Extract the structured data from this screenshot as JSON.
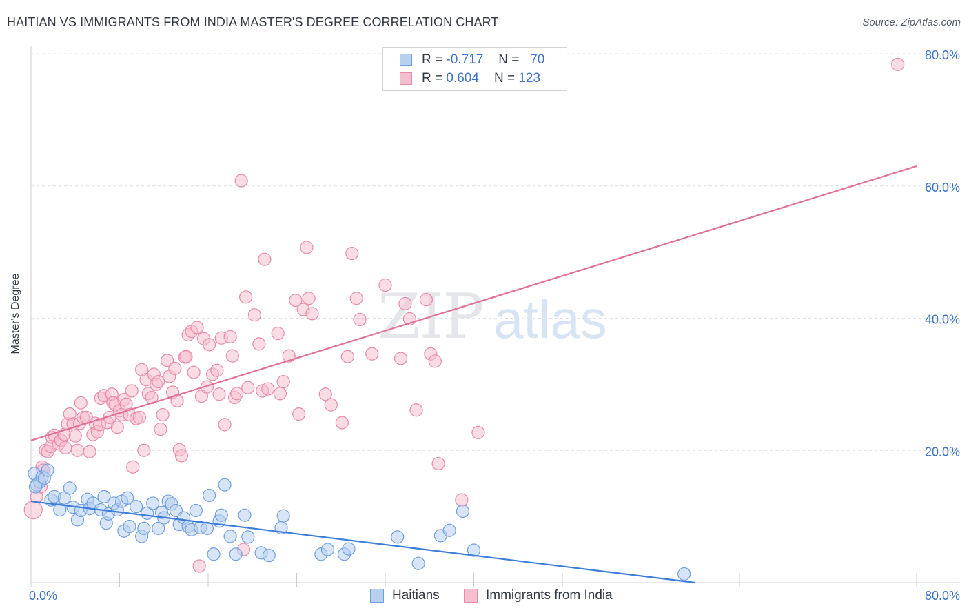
{
  "header": {
    "title": "HAITIAN VS IMMIGRANTS FROM INDIA MASTER'S DEGREE CORRELATION CHART",
    "source": "Source: ZipAtlas.com"
  },
  "legend_top": {
    "rows": [
      {
        "r_label": "R =",
        "r_value": "-0.717",
        "n_label": "N =",
        "n_value": "70"
      },
      {
        "r_label": "R =",
        "r_value": "0.604",
        "n_label": "N =",
        "n_value": "123"
      }
    ]
  },
  "legend_bottom": {
    "haitians": "Haitians",
    "india": "Immigrants from India"
  },
  "colors": {
    "blue": "#3b7dd8",
    "blue_fill": "#b8d0f0",
    "pink": "#e07097",
    "pink_fill": "#f6bfd0",
    "axis_label": "#3a72c8",
    "grid": "#dde1e6"
  },
  "chart_data": {
    "type": "scatter",
    "title": "HAITIAN VS IMMIGRANTS FROM INDIA MASTER'S DEGREE CORRELATION CHART",
    "xlabel": "",
    "ylabel": "Master's Degree",
    "xlim": [
      0,
      80
    ],
    "ylim": [
      0,
      80
    ],
    "x_tick_labels": [
      "0.0%",
      "80.0%"
    ],
    "y_tick_labels": [
      "20.0%",
      "40.0%",
      "60.0%",
      "80.0%"
    ],
    "y_ticks": [
      20,
      40,
      60,
      80
    ],
    "watermark": "ZIPatlas",
    "series": [
      {
        "name": "Haitians",
        "R": -0.717,
        "N": 70,
        "trend": {
          "x": [
            0,
            60
          ],
          "y": [
            12.3,
            0
          ]
        },
        "points": [
          [
            0.3,
            16.5
          ],
          [
            0.5,
            14.8
          ],
          [
            0.8,
            15.2
          ],
          [
            1,
            16
          ],
          [
            1.2,
            15.8
          ],
          [
            1.5,
            17
          ],
          [
            1.8,
            12.5
          ],
          [
            2.1,
            13
          ],
          [
            2.6,
            11
          ],
          [
            3,
            12.8
          ],
          [
            3.5,
            14.3
          ],
          [
            3.8,
            11.4
          ],
          [
            4.2,
            9.5
          ],
          [
            4.5,
            10.9
          ],
          [
            5.1,
            12.6
          ],
          [
            5.3,
            11.2
          ],
          [
            5.6,
            12
          ],
          [
            6.3,
            11
          ],
          [
            6.6,
            13
          ],
          [
            6.8,
            9
          ],
          [
            7,
            10.4
          ],
          [
            7.5,
            12
          ],
          [
            7.8,
            11
          ],
          [
            8.2,
            12.3
          ],
          [
            8.4,
            7.8
          ],
          [
            8.7,
            12.8
          ],
          [
            8.9,
            8.5
          ],
          [
            9.5,
            11.5
          ],
          [
            10,
            7
          ],
          [
            10.2,
            8.2
          ],
          [
            10.5,
            10.5
          ],
          [
            11,
            12
          ],
          [
            11.5,
            8.2
          ],
          [
            11.8,
            10.6
          ],
          [
            12,
            9.8
          ],
          [
            12.4,
            12.3
          ],
          [
            12.7,
            11.9
          ],
          [
            13.1,
            10.9
          ],
          [
            13.4,
            8.8
          ],
          [
            13.8,
            9.8
          ],
          [
            14.2,
            8.5
          ],
          [
            14.5,
            8.0
          ],
          [
            14.9,
            10.9
          ],
          [
            15.3,
            8.3
          ],
          [
            15.9,
            8.2
          ],
          [
            16.1,
            13.2
          ],
          [
            16.5,
            4.3
          ],
          [
            17,
            9.3
          ],
          [
            17.2,
            10.2
          ],
          [
            17.5,
            14.8
          ],
          [
            18,
            7
          ],
          [
            18.5,
            4.3
          ],
          [
            19.3,
            10.2
          ],
          [
            19.6,
            6.9
          ],
          [
            20.8,
            4.5
          ],
          [
            21.5,
            4.1
          ],
          [
            22.6,
            8.3
          ],
          [
            22.8,
            10.1
          ],
          [
            26.2,
            4.3
          ],
          [
            26.8,
            5
          ],
          [
            28.3,
            4.3
          ],
          [
            28.7,
            5.1
          ],
          [
            33.1,
            6.9
          ],
          [
            35,
            2.9
          ],
          [
            37,
            7.1
          ],
          [
            37.8,
            7.9
          ],
          [
            39,
            10.8
          ],
          [
            40,
            4.9
          ],
          [
            59,
            1.3
          ],
          [
            0.4,
            14.5
          ]
        ]
      },
      {
        "name": "Immigrants from India",
        "R": 0.604,
        "N": 123,
        "trend": {
          "x": [
            0,
            80
          ],
          "y": [
            21.5,
            63
          ]
        },
        "points": [
          [
            0.2,
            11
          ],
          [
            0.5,
            13
          ],
          [
            0.9,
            14.5
          ],
          [
            1,
            17.5
          ],
          [
            1.1,
            17
          ],
          [
            1.3,
            20
          ],
          [
            1.5,
            19.8
          ],
          [
            1.8,
            20.6
          ],
          [
            1.9,
            22
          ],
          [
            2.1,
            22.3
          ],
          [
            2.5,
            21
          ],
          [
            2.7,
            21.5
          ],
          [
            3,
            22.4
          ],
          [
            3.1,
            20.4
          ],
          [
            3.3,
            24
          ],
          [
            3.5,
            25.5
          ],
          [
            3.8,
            24
          ],
          [
            4,
            22.2
          ],
          [
            4.2,
            20
          ],
          [
            4.4,
            24.1
          ],
          [
            4.5,
            27.2
          ],
          [
            4.7,
            25
          ],
          [
            5,
            25
          ],
          [
            5.3,
            19.8
          ],
          [
            5.6,
            22.4
          ],
          [
            5.8,
            24.1
          ],
          [
            6,
            22.8
          ],
          [
            6.2,
            23.9
          ],
          [
            6.3,
            27.9
          ],
          [
            6.6,
            28.3
          ],
          [
            6.9,
            24.2
          ],
          [
            7.1,
            25
          ],
          [
            7.3,
            28.5
          ],
          [
            7.4,
            27.2
          ],
          [
            7.6,
            26.9
          ],
          [
            7.8,
            23.5
          ],
          [
            8.0,
            26
          ],
          [
            8.2,
            25.4
          ],
          [
            8.4,
            27.7
          ],
          [
            8.6,
            27
          ],
          [
            8.9,
            25.4
          ],
          [
            9.1,
            29
          ],
          [
            9.2,
            17.5
          ],
          [
            9.5,
            24.8
          ],
          [
            9.8,
            25
          ],
          [
            10,
            32.2
          ],
          [
            10.2,
            20
          ],
          [
            10.4,
            30.7
          ],
          [
            10.6,
            28.6
          ],
          [
            10.9,
            28
          ],
          [
            11.1,
            31.5
          ],
          [
            11.3,
            30
          ],
          [
            11.5,
            30.4
          ],
          [
            11.7,
            23.2
          ],
          [
            11.9,
            25.4
          ],
          [
            12.3,
            33.6
          ],
          [
            12.5,
            31.2
          ],
          [
            12.8,
            28.8
          ],
          [
            13,
            32.4
          ],
          [
            13.2,
            27.5
          ],
          [
            13.4,
            20.1
          ],
          [
            13.6,
            19.2
          ],
          [
            13.9,
            34.1
          ],
          [
            14,
            34.2
          ],
          [
            14.2,
            37.5
          ],
          [
            14.5,
            38
          ],
          [
            14.7,
            31.8
          ],
          [
            15,
            38.6
          ],
          [
            15.2,
            2.5
          ],
          [
            15.4,
            28.2
          ],
          [
            15.6,
            36.9
          ],
          [
            15.9,
            29.6
          ],
          [
            16.1,
            36
          ],
          [
            16.4,
            31.5
          ],
          [
            16.8,
            32.1
          ],
          [
            17,
            28.5
          ],
          [
            17.2,
            37
          ],
          [
            17.5,
            23.9
          ],
          [
            18.0,
            37.2
          ],
          [
            18.2,
            34.3
          ],
          [
            18.4,
            28
          ],
          [
            18.6,
            28.6
          ],
          [
            19,
            60.8
          ],
          [
            19.2,
            5
          ],
          [
            19.4,
            43.2
          ],
          [
            19.6,
            29.5
          ],
          [
            20.2,
            40.5
          ],
          [
            20.6,
            36.1
          ],
          [
            20.9,
            29
          ],
          [
            21.1,
            48.9
          ],
          [
            21.4,
            29.3
          ],
          [
            22.3,
            37.7
          ],
          [
            22.5,
            28.6
          ],
          [
            22.8,
            30.4
          ],
          [
            23.3,
            34.3
          ],
          [
            23.9,
            42.7
          ],
          [
            24.2,
            25.5
          ],
          [
            24.6,
            41.3
          ],
          [
            24.9,
            50.7
          ],
          [
            25.1,
            43
          ],
          [
            25.4,
            40.7
          ],
          [
            26.6,
            28.5
          ],
          [
            27.1,
            26.9
          ],
          [
            28.1,
            24.2
          ],
          [
            28.6,
            34.2
          ],
          [
            29.0,
            49.8
          ],
          [
            29.4,
            43
          ],
          [
            29.7,
            39.8
          ],
          [
            30.8,
            34.6
          ],
          [
            32.0,
            45
          ],
          [
            33.4,
            33.9
          ],
          [
            33.8,
            42.2
          ],
          [
            34.2,
            39.9
          ],
          [
            34.8,
            26.1
          ],
          [
            35.7,
            42.8
          ],
          [
            36.1,
            34.6
          ],
          [
            36.5,
            33.5
          ],
          [
            36.8,
            18
          ],
          [
            38.9,
            12.5
          ],
          [
            40.4,
            22.7
          ],
          [
            78.3,
            78.4
          ]
        ]
      }
    ]
  }
}
